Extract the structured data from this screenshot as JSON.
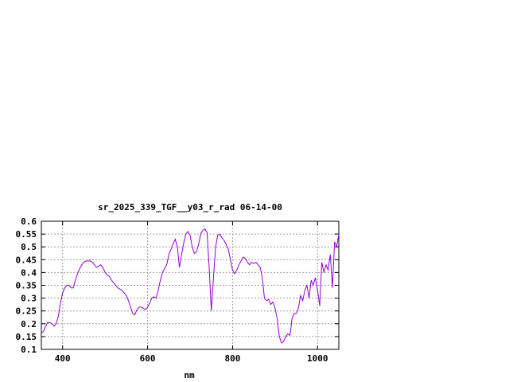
{
  "chart_data": {
    "type": "line",
    "title": "sr_2025_339_TGF__y03_r_rad 06-14-00",
    "xlabel": "nm",
    "ylabel": "",
    "xlim": [
      350,
      1050
    ],
    "ylim": [
      0.1,
      0.6
    ],
    "x_ticks": [
      400,
      600,
      800,
      1000
    ],
    "y_ticks": [
      0.1,
      0.15,
      0.2,
      0.25,
      0.3,
      0.35,
      0.4,
      0.45,
      0.5,
      0.55,
      0.6
    ],
    "grid": true,
    "legend": "none",
    "series": [
      {
        "color": "#9400d3",
        "x": [
          350,
          355,
          360,
          365,
          370,
          375,
          380,
          385,
          390,
          395,
          400,
          405,
          410,
          415,
          420,
          425,
          430,
          435,
          440,
          445,
          450,
          455,
          460,
          465,
          470,
          475,
          480,
          485,
          490,
          495,
          500,
          505,
          510,
          515,
          520,
          525,
          530,
          535,
          540,
          545,
          550,
          555,
          560,
          565,
          570,
          575,
          580,
          585,
          590,
          595,
          600,
          605,
          610,
          615,
          620,
          625,
          630,
          635,
          640,
          645,
          650,
          655,
          660,
          665,
          670,
          675,
          680,
          685,
          690,
          695,
          700,
          705,
          710,
          715,
          720,
          725,
          730,
          735,
          740,
          745,
          750,
          755,
          760,
          765,
          770,
          775,
          780,
          785,
          790,
          795,
          800,
          805,
          810,
          815,
          820,
          825,
          830,
          835,
          840,
          845,
          850,
          855,
          860,
          865,
          870,
          875,
          880,
          885,
          890,
          895,
          900,
          905,
          910,
          915,
          920,
          925,
          930,
          935,
          940,
          945,
          950,
          955,
          960,
          965,
          970,
          975,
          980,
          985,
          990,
          995,
          1000,
          1005,
          1010,
          1015,
          1020,
          1025,
          1030,
          1035,
          1040,
          1045,
          1050
        ],
        "values": [
          0.165,
          0.17,
          0.19,
          0.205,
          0.205,
          0.2,
          0.19,
          0.2,
          0.23,
          0.28,
          0.32,
          0.34,
          0.35,
          0.35,
          0.34,
          0.34,
          0.37,
          0.395,
          0.415,
          0.43,
          0.44,
          0.445,
          0.445,
          0.445,
          0.44,
          0.43,
          0.42,
          0.425,
          0.43,
          0.42,
          0.4,
          0.39,
          0.385,
          0.37,
          0.36,
          0.35,
          0.34,
          0.335,
          0.33,
          0.32,
          0.31,
          0.29,
          0.265,
          0.24,
          0.235,
          0.255,
          0.265,
          0.265,
          0.26,
          0.255,
          0.265,
          0.28,
          0.3,
          0.305,
          0.3,
          0.33,
          0.37,
          0.4,
          0.415,
          0.43,
          0.47,
          0.49,
          0.51,
          0.53,
          0.5,
          0.42,
          0.47,
          0.515,
          0.55,
          0.56,
          0.545,
          0.5,
          0.475,
          0.48,
          0.51,
          0.55,
          0.565,
          0.57,
          0.555,
          0.42,
          0.25,
          0.38,
          0.5,
          0.545,
          0.55,
          0.535,
          0.525,
          0.51,
          0.49,
          0.45,
          0.41,
          0.395,
          0.41,
          0.43,
          0.445,
          0.46,
          0.455,
          0.44,
          0.43,
          0.44,
          0.435,
          0.44,
          0.43,
          0.42,
          0.38,
          0.3,
          0.29,
          0.295,
          0.275,
          0.285,
          0.26,
          0.22,
          0.15,
          0.125,
          0.13,
          0.15,
          0.16,
          0.155,
          0.22,
          0.24,
          0.24,
          0.26,
          0.31,
          0.29,
          0.33,
          0.35,
          0.3,
          0.37,
          0.35,
          0.38,
          0.33,
          0.27,
          0.44,
          0.4,
          0.43,
          0.41,
          0.47,
          0.34,
          0.52,
          0.5,
          0.55
        ]
      }
    ]
  }
}
